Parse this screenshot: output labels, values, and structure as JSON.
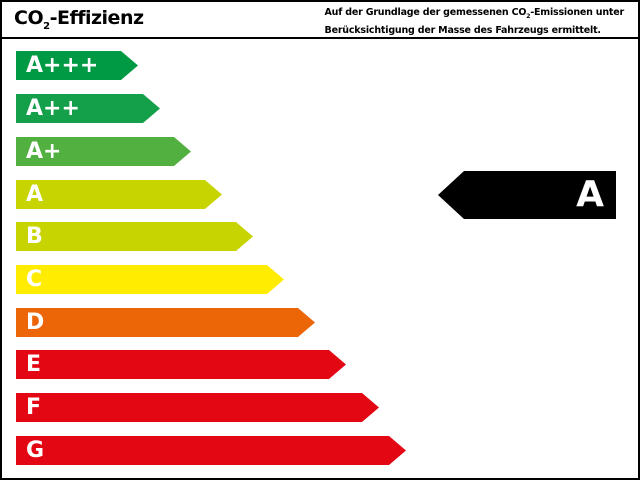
{
  "header": {
    "title_prefix": "CO",
    "title_sub": "2",
    "title_suffix": "-Effizienz",
    "note_line1_prefix": "Auf der Grundlage der gemessenen CO",
    "note_line1_sub": "2",
    "note_line1_suffix": "-Emissionen unter",
    "note_line2": "Berücksichtigung der Masse des Fahrzeugs ermittelt."
  },
  "classes": [
    {
      "label": "A+++",
      "color": "#009a44"
    },
    {
      "label": "A++",
      "color": "#14a04a"
    },
    {
      "label": "A+",
      "color": "#52b041"
    },
    {
      "label": "A",
      "color": "#c8d400"
    },
    {
      "label": "B",
      "color": "#c8d400"
    },
    {
      "label": "C",
      "color": "#ffec00"
    },
    {
      "label": "D",
      "color": "#ec6608"
    },
    {
      "label": "E",
      "color": "#e30613"
    },
    {
      "label": "F",
      "color": "#e30613"
    },
    {
      "label": "G",
      "color": "#e30613"
    }
  ],
  "rating": {
    "label": "A",
    "color": "#000000"
  }
}
